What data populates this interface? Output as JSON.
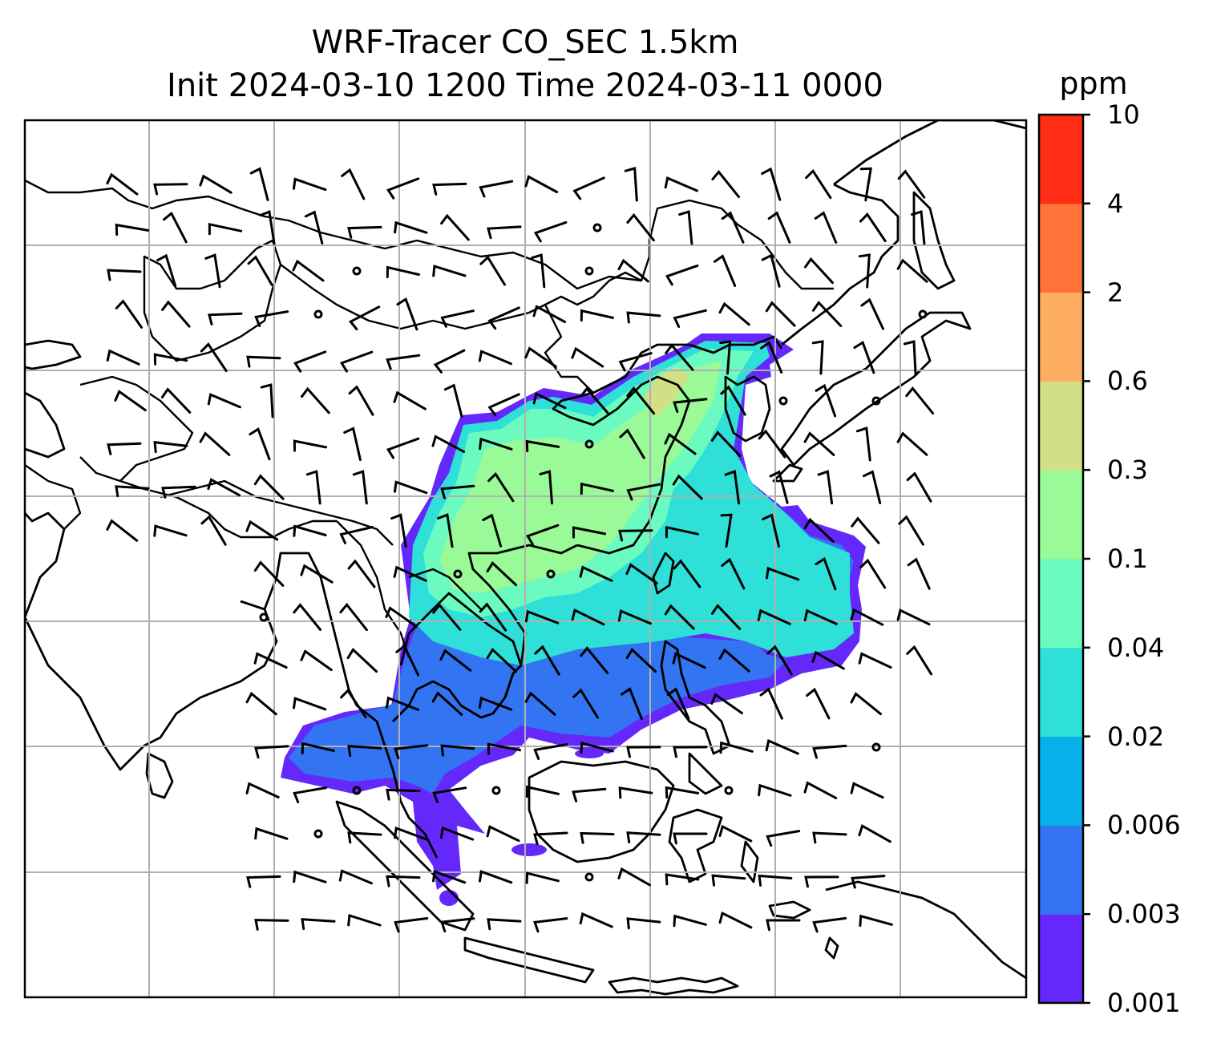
{
  "title": {
    "line1": "WRF-Tracer CO_SEC 1.5km",
    "line2": "Init 2024-03-10 1200 Time 2024-03-11 0000"
  },
  "colorbar": {
    "unit": "ppm",
    "ticks": [
      "0.001",
      "0.003",
      "0.006",
      "0.02",
      "0.04",
      "0.1",
      "0.3",
      "0.6",
      "2",
      "4",
      "10"
    ],
    "colors": [
      "#6429fa",
      "#3374f2",
      "#07b0ea",
      "#2ee0d8",
      "#6bfbc0",
      "#99fa97",
      "#d1e085",
      "#feae60",
      "#ff7338",
      "#ff2d16"
    ]
  },
  "map": {
    "gridlines": true,
    "colors": {
      "coastline": "#000000",
      "grid": "#b0b0b0",
      "barb": "#000000"
    }
  }
}
